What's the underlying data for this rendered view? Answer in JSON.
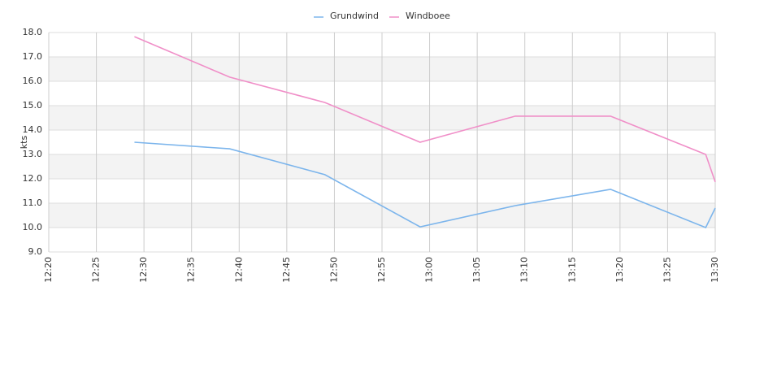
{
  "chart_data": {
    "type": "line",
    "y_label": "kts",
    "x": [
      "12:29",
      "12:39",
      "12:49",
      "12:59",
      "13:09",
      "13:19",
      "13:29",
      "13:30"
    ],
    "series": [
      {
        "name": "Grundwind",
        "color": "#7cb5ec",
        "values": [
          13.5,
          13.23,
          12.17,
          10.03,
          10.9,
          11.57,
          10.0,
          10.8
        ]
      },
      {
        "name": "Windboee",
        "color": "#f08fc8",
        "values": [
          17.83,
          16.17,
          15.13,
          13.5,
          14.57,
          14.57,
          13.0,
          11.87
        ]
      }
    ],
    "xlim": [
      "12:20",
      "13:30"
    ],
    "xticks": [
      "12:20",
      "12:25",
      "12:30",
      "12:35",
      "12:40",
      "12:45",
      "12:50",
      "12:55",
      "13:00",
      "13:05",
      "13:10",
      "13:15",
      "13:20",
      "13:25",
      "13:30"
    ],
    "ylim": [
      9,
      18
    ],
    "yticks": [
      {
        "value": 9,
        "label": "9.0"
      },
      {
        "value": 10,
        "label": "10.0"
      },
      {
        "value": 11,
        "label": "11.0"
      },
      {
        "value": 12,
        "label": "12.0"
      },
      {
        "value": 13,
        "label": "13.0"
      },
      {
        "value": 14,
        "label": "14.0"
      },
      {
        "value": 15,
        "label": "15.0"
      },
      {
        "value": 16,
        "label": "16.0"
      },
      {
        "value": 17,
        "label": "17.0"
      },
      {
        "value": 18,
        "label": "18.0"
      }
    ],
    "grid": true,
    "legend": "top"
  }
}
